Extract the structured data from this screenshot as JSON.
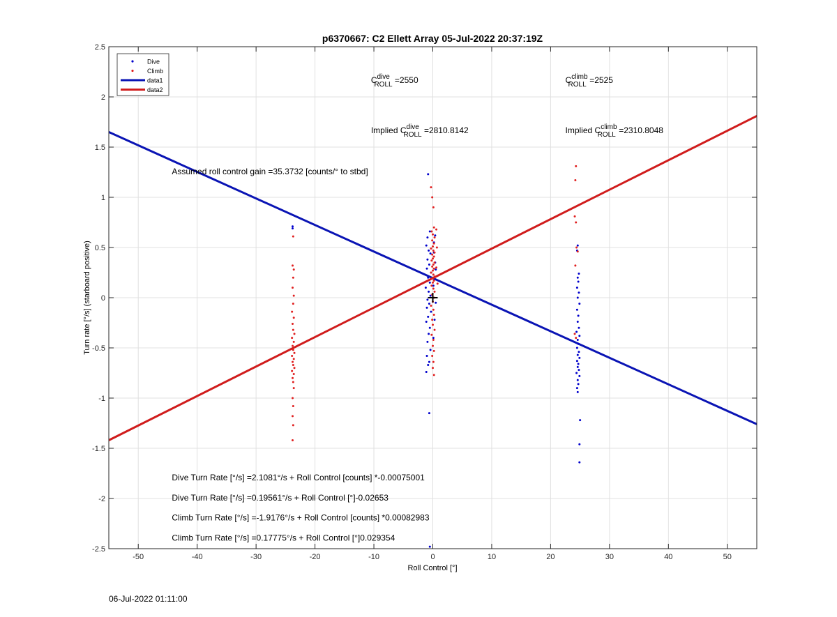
{
  "footer": {
    "timestamp": "06-Jul-2022 01:11:00"
  },
  "chart_data": {
    "type": "scatter",
    "title": "p6370667: C2 Ellett Array 05-Jul-2022 20:37:19Z",
    "xlabel": "Roll Control [°]",
    "ylabel": "Turn rate [°/s] (starboard positive)",
    "xlim": [
      -55,
      55
    ],
    "ylim": [
      -2.5,
      2.5
    ],
    "xticks": [
      -50,
      -40,
      -30,
      -20,
      -10,
      0,
      10,
      20,
      30,
      40,
      50
    ],
    "yticks": [
      -2.5,
      -2,
      -1.5,
      -1,
      -0.5,
      0,
      0.5,
      1,
      1.5,
      2,
      2.5
    ],
    "xtick_labels": [
      "-50",
      "-40",
      "-30",
      "-20",
      "-10",
      "0",
      "10",
      "20",
      "30",
      "40",
      "50"
    ],
    "ytick_labels": [
      "-2.5",
      "-2",
      "-1.5",
      "-1",
      "-0.5",
      "0",
      "0.5",
      "1",
      "1.5",
      "2",
      "2.5"
    ],
    "grid": true,
    "legend_position": "top-left",
    "legend": [
      {
        "label": "Dive",
        "kind": "marker",
        "color": "#0000cc"
      },
      {
        "label": "Climb",
        "kind": "marker",
        "color": "#e02020"
      },
      {
        "label": "data1",
        "kind": "line",
        "color": "#0a14b4"
      },
      {
        "label": "data2",
        "kind": "line",
        "color": "#d01c1c"
      }
    ],
    "series": [
      {
        "name": "Dive",
        "kind": "scatter",
        "color": "#0000cc",
        "points": [
          [
            -23.8,
            0.71
          ],
          [
            -23.8,
            0.69
          ],
          [
            -0.8,
            1.23
          ],
          [
            -0.5,
            0.66
          ],
          [
            -0.9,
            0.6
          ],
          [
            -1.1,
            0.52
          ],
          [
            -0.7,
            0.47
          ],
          [
            -0.4,
            0.44
          ],
          [
            -0.9,
            0.38
          ],
          [
            -0.6,
            0.33
          ],
          [
            -1.0,
            0.29
          ],
          [
            -0.3,
            0.25
          ],
          [
            -0.8,
            0.2
          ],
          [
            -0.5,
            0.15
          ],
          [
            -1.2,
            0.1
          ],
          [
            -0.7,
            0.06
          ],
          [
            -0.4,
            0.02
          ],
          [
            -0.9,
            -0.02
          ],
          [
            -0.6,
            -0.06
          ],
          [
            -1.0,
            -0.1
          ],
          [
            -0.3,
            -0.14
          ],
          [
            -0.8,
            -0.19
          ],
          [
            -1.1,
            -0.24
          ],
          [
            -0.5,
            -0.3
          ],
          [
            -0.7,
            -0.36
          ],
          [
            -0.9,
            -0.44
          ],
          [
            -0.4,
            -0.52
          ],
          [
            -1.0,
            -0.58
          ],
          [
            -0.6,
            -0.64
          ],
          [
            -0.8,
            -0.67
          ],
          [
            -1.1,
            -0.74
          ],
          [
            -0.6,
            -1.15
          ],
          [
            -0.5,
            -2.48
          ],
          [
            0.2,
            0.55
          ],
          [
            0.4,
            0.35
          ],
          [
            0.1,
            0.12
          ],
          [
            0.5,
            -0.05
          ],
          [
            0.3,
            -0.22
          ],
          [
            0.1,
            -0.4
          ],
          [
            0.4,
            0.62
          ],
          [
            0.2,
            0.45
          ],
          [
            0.5,
            0.28
          ],
          [
            24.6,
            0.52
          ],
          [
            24.5,
            0.47
          ],
          [
            24.8,
            0.24
          ],
          [
            24.6,
            0.2
          ],
          [
            24.7,
            0.16
          ],
          [
            24.5,
            0.1
          ],
          [
            24.8,
            0.05
          ],
          [
            24.6,
            0.0
          ],
          [
            24.9,
            -0.06
          ],
          [
            24.5,
            -0.12
          ],
          [
            24.7,
            -0.18
          ],
          [
            24.6,
            -0.24
          ],
          [
            24.8,
            -0.3
          ],
          [
            24.4,
            -0.34
          ],
          [
            24.9,
            -0.38
          ],
          [
            24.6,
            -0.42
          ],
          [
            24.7,
            -0.46
          ],
          [
            24.5,
            -0.5
          ],
          [
            24.8,
            -0.54
          ],
          [
            24.6,
            -0.57
          ],
          [
            24.9,
            -0.6
          ],
          [
            24.5,
            -0.63
          ],
          [
            24.7,
            -0.66
          ],
          [
            24.6,
            -0.69
          ],
          [
            24.8,
            -0.72
          ],
          [
            24.4,
            -0.75
          ],
          [
            24.9,
            -0.78
          ],
          [
            24.6,
            -0.82
          ],
          [
            24.7,
            -0.86
          ],
          [
            24.5,
            -0.9
          ],
          [
            24.6,
            -0.94
          ],
          [
            25.0,
            -1.22
          ],
          [
            24.9,
            -1.46
          ],
          [
            24.9,
            -1.64
          ]
        ]
      },
      {
        "name": "Climb",
        "kind": "scatter",
        "color": "#e02020",
        "points": [
          [
            -23.7,
            0.61
          ],
          [
            -23.8,
            0.32
          ],
          [
            -23.6,
            0.28
          ],
          [
            -23.7,
            0.2
          ],
          [
            -23.8,
            0.1
          ],
          [
            -23.6,
            0.02
          ],
          [
            -23.7,
            -0.06
          ],
          [
            -23.9,
            -0.14
          ],
          [
            -23.6,
            -0.2
          ],
          [
            -23.8,
            -0.26
          ],
          [
            -23.7,
            -0.32
          ],
          [
            -23.5,
            -0.36
          ],
          [
            -23.9,
            -0.4
          ],
          [
            -23.6,
            -0.44
          ],
          [
            -23.8,
            -0.48
          ],
          [
            -23.7,
            -0.52
          ],
          [
            -23.5,
            -0.55
          ],
          [
            -23.9,
            -0.58
          ],
          [
            -23.6,
            -0.61
          ],
          [
            -23.8,
            -0.64
          ],
          [
            -23.7,
            -0.67
          ],
          [
            -23.5,
            -0.7
          ],
          [
            -23.9,
            -0.73
          ],
          [
            -23.6,
            -0.76
          ],
          [
            -23.8,
            -0.8
          ],
          [
            -23.7,
            -0.84
          ],
          [
            -23.6,
            -0.9
          ],
          [
            -23.8,
            -1.0
          ],
          [
            -23.7,
            -1.08
          ],
          [
            -23.8,
            -1.18
          ],
          [
            -23.7,
            -1.27
          ],
          [
            -23.8,
            -1.42
          ],
          [
            -0.3,
            1.1
          ],
          [
            -0.1,
            1.0
          ],
          [
            0.1,
            0.9
          ],
          [
            0.2,
            0.7
          ],
          [
            -0.2,
            0.66
          ],
          [
            0.0,
            0.63
          ],
          [
            0.3,
            0.6
          ],
          [
            -0.1,
            0.57
          ],
          [
            0.2,
            0.54
          ],
          [
            0.0,
            0.51
          ],
          [
            -0.3,
            0.49
          ],
          [
            0.1,
            0.47
          ],
          [
            0.3,
            0.45
          ],
          [
            -0.1,
            0.43
          ],
          [
            0.2,
            0.41
          ],
          [
            0.0,
            0.39
          ],
          [
            -0.2,
            0.37
          ],
          [
            0.3,
            0.35
          ],
          [
            0.1,
            0.33
          ],
          [
            -0.1,
            0.31
          ],
          [
            0.2,
            0.29
          ],
          [
            0.0,
            0.27
          ],
          [
            -0.3,
            0.25
          ],
          [
            0.1,
            0.23
          ],
          [
            0.3,
            0.21
          ],
          [
            -0.1,
            0.19
          ],
          [
            0.2,
            0.17
          ],
          [
            0.0,
            0.15
          ],
          [
            -0.2,
            0.12
          ],
          [
            0.1,
            0.09
          ],
          [
            0.3,
            0.06
          ],
          [
            -0.1,
            0.03
          ],
          [
            0.2,
            0.0
          ],
          [
            0.0,
            -0.04
          ],
          [
            -0.3,
            -0.08
          ],
          [
            0.1,
            -0.12
          ],
          [
            0.2,
            -0.17
          ],
          [
            -0.1,
            -0.22
          ],
          [
            0.0,
            -0.27
          ],
          [
            0.3,
            -0.32
          ],
          [
            -0.2,
            -0.37
          ],
          [
            0.1,
            -0.42
          ],
          [
            0.0,
            -0.48
          ],
          [
            0.2,
            -0.53
          ],
          [
            -0.1,
            -0.58
          ],
          [
            0.1,
            -0.64
          ],
          [
            0.0,
            -0.7
          ],
          [
            0.2,
            -0.77
          ],
          [
            0.6,
            0.68
          ],
          [
            0.7,
            0.5
          ],
          [
            0.6,
            0.3
          ],
          [
            0.8,
            0.14
          ],
          [
            24.3,
            1.31
          ],
          [
            24.2,
            1.17
          ],
          [
            24.1,
            0.81
          ],
          [
            24.3,
            0.75
          ],
          [
            24.4,
            0.5
          ],
          [
            24.6,
            0.46
          ],
          [
            24.2,
            0.32
          ],
          [
            24.1,
            -0.36
          ],
          [
            24.3,
            -0.4
          ]
        ]
      },
      {
        "name": "data1",
        "kind": "line",
        "color": "#0a14b4",
        "x": [
          -55,
          55
        ],
        "y": [
          1.65,
          -1.26
        ]
      },
      {
        "name": "data2",
        "kind": "line",
        "color": "#d01c1c",
        "x": [
          -55,
          55
        ],
        "y": [
          -1.42,
          1.81
        ]
      }
    ],
    "annotations": [
      {
        "id": "c-dive",
        "base": "C",
        "sup": "dive",
        "sub": "ROLL",
        "rest": " =2550",
        "x": -10.5,
        "y": 2.14
      },
      {
        "id": "c-climb",
        "base": "C",
        "sup": "climb",
        "sub": "ROLL",
        "rest": " =2525",
        "x": 22.5,
        "y": 2.14
      },
      {
        "id": "implied-dive",
        "pre": "Implied ",
        "base": "C",
        "sup": "dive",
        "sub": "ROLL",
        "rest": " =2810.8142",
        "x": -10.5,
        "y": 1.64
      },
      {
        "id": "implied-climb",
        "pre": "Implied ",
        "base": "C",
        "sup": "climb",
        "sub": "ROLL",
        "rest": " =2310.8048",
        "x": 22.5,
        "y": 1.64
      },
      {
        "id": "roll-gain",
        "text": "Assumed roll control gain =35.3732 [counts/° to stbd]",
        "x": -44.3,
        "y": 1.23
      },
      {
        "id": "dive-counts",
        "text": "Dive Turn Rate [°/s] =2.1081°/s + Roll Control [counts] *-0.00075001",
        "x": -44.3,
        "y": -1.82
      },
      {
        "id": "dive-deg",
        "text": "Dive Turn Rate [°/s] =0.19561°/s + Roll Control [°]-0.02653",
        "x": -44.3,
        "y": -2.02
      },
      {
        "id": "climb-counts",
        "text": "Climb Turn Rate [°/s] =-1.9176°/s + Roll Control [counts] *0.00082983",
        "x": -44.3,
        "y": -2.22
      },
      {
        "id": "climb-deg",
        "text": "Climb Turn Rate [°/s] =0.17775°/s + Roll Control [°]0.029354",
        "x": -44.3,
        "y": -2.42
      }
    ],
    "marker": {
      "type": "plus",
      "x": 0,
      "y": 0,
      "color": "#000000"
    }
  }
}
